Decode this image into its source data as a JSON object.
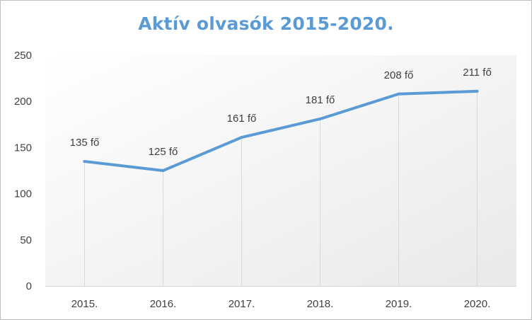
{
  "chart_data": {
    "type": "line",
    "title": "Aktív olvasók 2015-2020.",
    "categories": [
      "2015.",
      "2016.",
      "2017.",
      "2018.",
      "2019.",
      "2020."
    ],
    "series": [
      {
        "values": [
          135,
          125,
          161,
          181,
          208,
          211
        ],
        "data_labels": [
          "135 fő",
          "125 fő",
          "161 fő",
          "181 fő",
          "208 fő",
          "211 fő"
        ],
        "color": "#5b9bd5"
      }
    ],
    "yticks": [
      "0",
      "50",
      "100",
      "150",
      "200",
      "250"
    ],
    "ylim": [
      0,
      250
    ],
    "xlabel": "",
    "ylabel": "",
    "grid": "vertical",
    "legend": "none",
    "plot_background": "gradient-white-to-light-gray"
  }
}
